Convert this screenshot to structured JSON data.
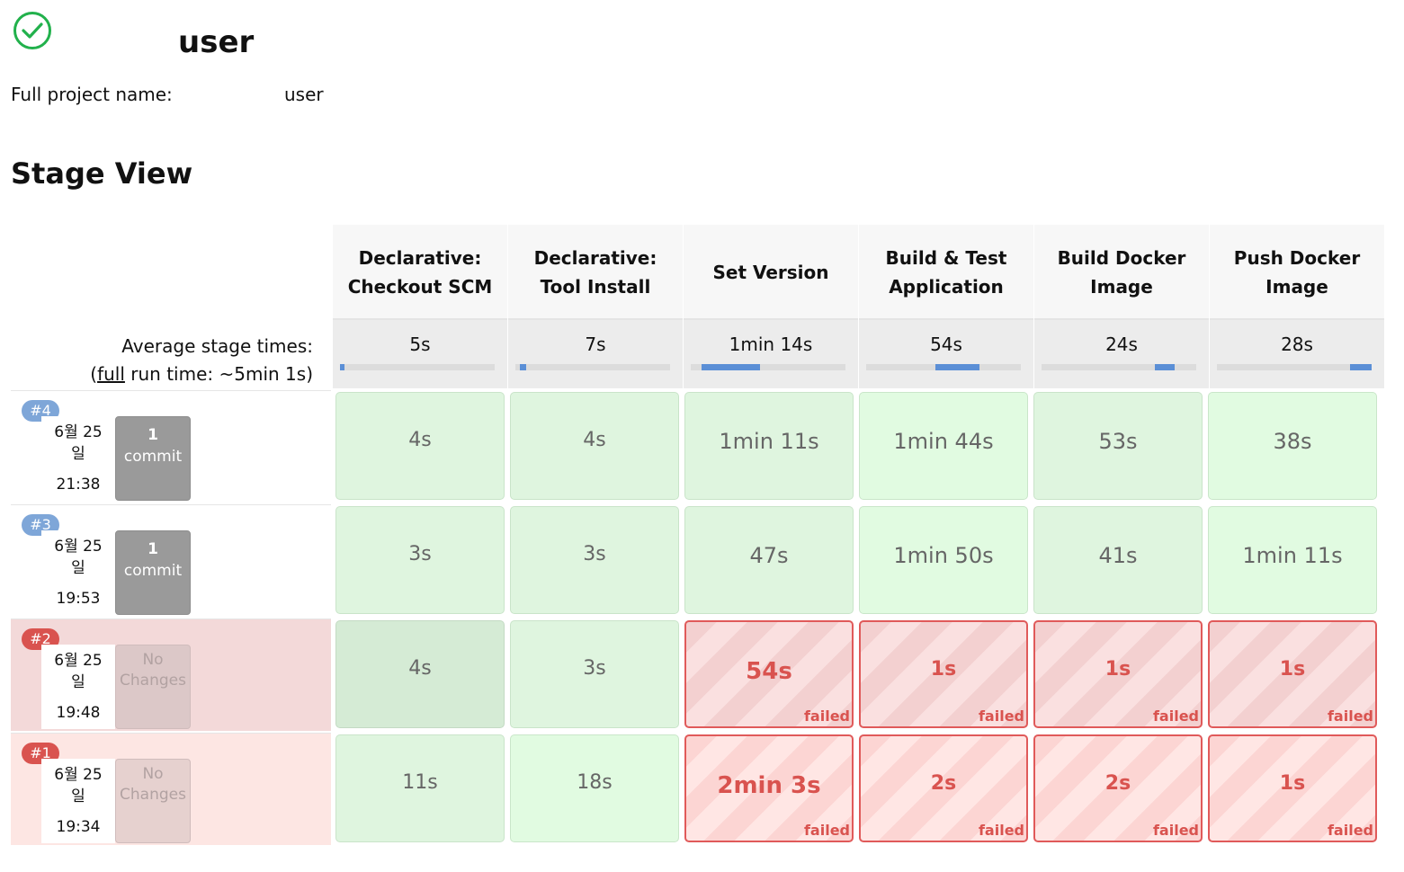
{
  "job": {
    "title": "user",
    "full_name_label": "Full project name:",
    "full_name_value": "user"
  },
  "section_title": "Stage View",
  "stages": [
    {
      "name": "Declarative:\nCheckout SCM",
      "avg": "5s",
      "bar": [
        0.0,
        0.03
      ]
    },
    {
      "name": "Declarative:\nTool Install",
      "avg": "7s",
      "bar": [
        0.03,
        0.07
      ]
    },
    {
      "name": "Set Version",
      "avg": "1min 14s",
      "bar": [
        0.07,
        0.45
      ]
    },
    {
      "name": "Build & Test\nApplication",
      "avg": "54s",
      "bar": [
        0.45,
        0.73
      ]
    },
    {
      "name": "Build Docker\nImage",
      "avg": "24s",
      "bar": [
        0.73,
        0.86
      ]
    },
    {
      "name": "Push Docker\nImage",
      "avg": "28s",
      "bar": [
        0.86,
        1.0
      ]
    }
  ],
  "average": {
    "line1": "Average stage times:",
    "line2_prefix": "(",
    "line2_link": "full",
    "line2_suffix": " run time: ~5min 1s)"
  },
  "builds": [
    {
      "number": "#4",
      "date": "6월 25",
      "day": "일",
      "time": "21:38",
      "changes_count": "1",
      "changes_word": "commit",
      "status": "success",
      "cells": [
        {
          "value": "4s"
        },
        {
          "value": "4s"
        },
        {
          "value": "1min 11s"
        },
        {
          "value": "1min 44s"
        },
        {
          "value": "53s"
        },
        {
          "value": "38s"
        }
      ]
    },
    {
      "number": "#3",
      "date": "6월 25",
      "day": "일",
      "time": "19:53",
      "changes_count": "1",
      "changes_word": "commit",
      "status": "success",
      "cells": [
        {
          "value": "3s"
        },
        {
          "value": "3s"
        },
        {
          "value": "47s"
        },
        {
          "value": "1min 50s"
        },
        {
          "value": "41s"
        },
        {
          "value": "1min 11s"
        }
      ]
    },
    {
      "number": "#2",
      "date": "6월 25",
      "day": "일",
      "time": "19:48",
      "changes_count": "No",
      "changes_word": "Changes",
      "status": "failed",
      "cells": [
        {
          "value": "4s"
        },
        {
          "value": "3s"
        },
        {
          "value": "54s",
          "failed": "failed"
        },
        {
          "value": "1s",
          "failed": "failed"
        },
        {
          "value": "1s",
          "failed": "failed"
        },
        {
          "value": "1s",
          "failed": "failed"
        }
      ]
    },
    {
      "number": "#1",
      "date": "6월 25",
      "day": "일",
      "time": "19:34",
      "changes_count": "No",
      "changes_word": "Changes",
      "status": "failed",
      "cells": [
        {
          "value": "11s"
        },
        {
          "value": "18s"
        },
        {
          "value": "2min 3s",
          "failed": "failed"
        },
        {
          "value": "2s",
          "failed": "failed"
        },
        {
          "value": "2s",
          "failed": "failed"
        },
        {
          "value": "1s",
          "failed": "failed"
        }
      ]
    }
  ],
  "colors": {
    "success_icon": "#22b14c",
    "fail_border": "#e05a5a",
    "fail_text": "#d9534f",
    "bar_fill": "#5b8fd6"
  }
}
